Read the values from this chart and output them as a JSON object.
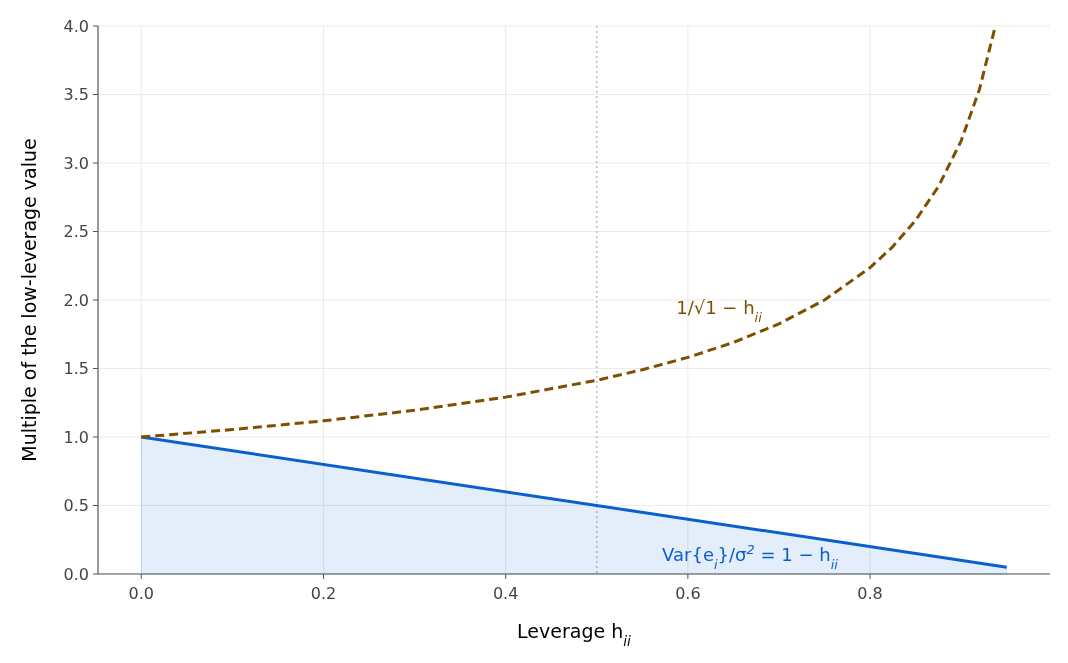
{
  "chart_data": {
    "type": "line",
    "xlabel": "Leverage h$_{ii}$",
    "ylabel": "Multiple of the low-leverage value",
    "xlim": [
      -0.0475,
      0.9975
    ],
    "xticks": [
      {
        "value": 0,
        "label": "0.0"
      },
      0.2,
      0.4,
      0.6,
      0.8
    ],
    "ylim": [
      0,
      4
    ],
    "yticks": [
      {
        "value": 0,
        "label": "0.0"
      },
      0.5,
      {
        "value": 1,
        "label": "1.0"
      },
      1.5,
      {
        "value": 2,
        "label": "2.0"
      },
      2.5,
      {
        "value": 3,
        "label": "3.0"
      },
      3.5,
      {
        "value": 4,
        "label": "4.0"
      }
    ],
    "grid": true,
    "series": [
      {
        "type": "area",
        "name": "Var{e$_{i}$}/σ$^{2}$ = 1 − h$_{ii}$",
        "color": "#0a5fd0",
        "line_style": "solid",
        "x": [
          0,
          0.95
        ],
        "values": [
          1,
          0.05
        ]
      },
      {
        "name": "1/√1 − h$_{ii}$",
        "color": "#7f4f00",
        "line_style": "dashed",
        "x": [
          0,
          0.1,
          0.2,
          0.3,
          0.4,
          0.5,
          0.55,
          0.6,
          0.65,
          0.7,
          0.75,
          0.8,
          0.825,
          0.85,
          0.875,
          0.9,
          0.92,
          0.9375
        ],
        "values": [
          1,
          1.054,
          1.118,
          1.195,
          1.291,
          1.414,
          1.491,
          1.581,
          1.69,
          1.826,
          2.0,
          2.236,
          2.39,
          2.582,
          2.828,
          3.162,
          3.536,
          4.0
        ]
      }
    ],
    "ref_lines": [
      {
        "axis": "x",
        "value": 0.5,
        "color": "#bbbbbb",
        "line_style": "dotted"
      }
    ]
  }
}
